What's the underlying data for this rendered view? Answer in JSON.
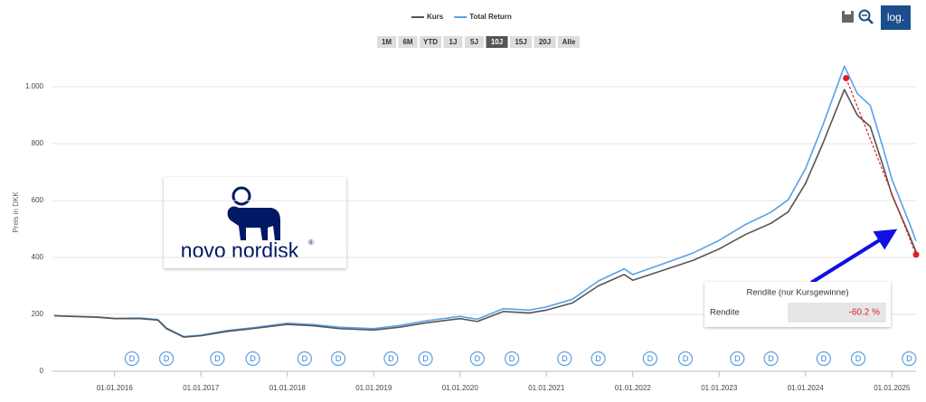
{
  "chart_data": {
    "type": "line",
    "y_axis_label": "Preis in DKK",
    "range_buttons": [
      "1M",
      "6M",
      "YTD",
      "1J",
      "5J",
      "10J",
      "15J",
      "20J",
      "Alle"
    ],
    "active_range": "10J",
    "log_button": "log.",
    "logo_text": "novo nordisk",
    "logo_mark": "®",
    "xlim": [
      2015.28,
      2025.28
    ],
    "xticks": [
      {
        "value": 2016,
        "label": "01.01.2016"
      },
      {
        "value": 2017,
        "label": "01.01.2017"
      },
      {
        "value": 2018,
        "label": "01.01.2018"
      },
      {
        "value": 2019,
        "label": "01.01.2019"
      },
      {
        "value": 2020,
        "label": "01.01.2020"
      },
      {
        "value": 2021,
        "label": "01.01.2021"
      },
      {
        "value": 2022,
        "label": "01.01.2022"
      },
      {
        "value": 2023,
        "label": "01.01.2023"
      },
      {
        "value": 2024,
        "label": "01.01.2024"
      },
      {
        "value": 2025,
        "label": "01.01.2025"
      }
    ],
    "ylim": [
      0,
      1100
    ],
    "yticks": [
      0,
      200,
      400,
      600,
      800,
      {
        "value": 1000,
        "label": "1.000"
      }
    ],
    "grid": true,
    "x": [
      2015.3,
      2015.8,
      2016.0,
      2016.3,
      2016.5,
      2016.6,
      2016.8,
      2017.0,
      2017.3,
      2017.6,
      2018.0,
      2018.3,
      2018.6,
      2019.0,
      2019.3,
      2019.6,
      2020.0,
      2020.2,
      2020.5,
      2020.8,
      2021.0,
      2021.3,
      2021.6,
      2021.9,
      2022.0,
      2022.4,
      2022.7,
      2023.0,
      2023.3,
      2023.6,
      2023.8,
      2024.0,
      2024.2,
      2024.45,
      2024.6,
      2024.75,
      2024.9,
      2025.0,
      2025.1,
      2025.2,
      2025.28
    ],
    "series": [
      {
        "name": "Kurs",
        "color": "#555555",
        "values": [
          195,
          190,
          185,
          185,
          180,
          150,
          120,
          125,
          140,
          150,
          165,
          160,
          150,
          145,
          155,
          170,
          185,
          175,
          210,
          205,
          215,
          240,
          300,
          340,
          320,
          360,
          390,
          430,
          480,
          520,
          560,
          660,
          800,
          990,
          900,
          860,
          720,
          620,
          550,
          480,
          420
        ]
      },
      {
        "name": "Total Return",
        "color": "#5aa0e8",
        "values": [
          195,
          191,
          186,
          187,
          182,
          152,
          122,
          127,
          143,
          153,
          169,
          164,
          155,
          150,
          161,
          177,
          193,
          183,
          220,
          215,
          226,
          253,
          317,
          360,
          340,
          383,
          416,
          460,
          515,
          559,
          603,
          712,
          864,
          1072,
          976,
          934,
          783,
          675,
          599,
          523,
          458
        ]
      }
    ],
    "dividend_label": "D",
    "dividends": [
      2016.2,
      2016.6,
      2017.19,
      2017.6,
      2018.2,
      2018.59,
      2019.2,
      2019.6,
      2020.2,
      2020.6,
      2021.21,
      2021.6,
      2022.2,
      2022.61,
      2023.21,
      2023.6,
      2024.21,
      2024.61,
      2025.2
    ],
    "measure_line": {
      "x": [
        2024.47,
        2025.28
      ],
      "y": [
        1030,
        410
      ]
    },
    "rendite_box": {
      "title": "Rendite (nur Kursgewinne)",
      "label": "Rendite",
      "value": "-60.2 %"
    }
  }
}
